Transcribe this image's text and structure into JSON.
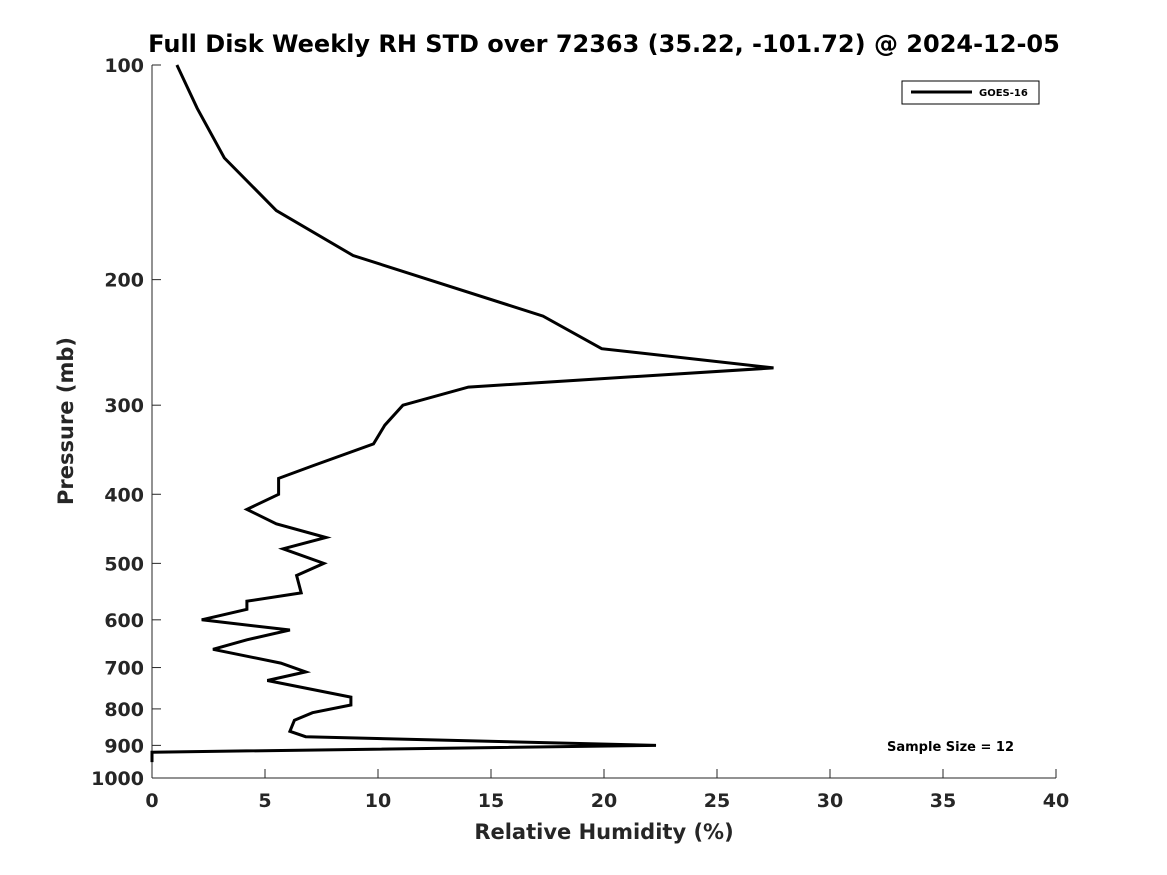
{
  "chart_data": {
    "type": "line",
    "title": "Full Disk Weekly RH STD over 72363 (35.22, -101.72) @ 2024-12-05",
    "xlabel": "Relative Humidity (%)",
    "ylabel": "Pressure (mb)",
    "xlim": [
      0,
      40
    ],
    "ylim": [
      100,
      1000
    ],
    "yscale": "log",
    "y_reversed": true,
    "x_ticks": [
      "0",
      "5",
      "10",
      "15",
      "20",
      "25",
      "30",
      "35",
      "40"
    ],
    "y_ticks": [
      "100",
      "200",
      "300",
      "400",
      "500",
      "600",
      "700",
      "800",
      "900",
      "1000"
    ],
    "grid": false,
    "legend_position": "top-right",
    "series": [
      {
        "name": "GOES-16",
        "color": "#000000",
        "points": [
          [
            1.1,
            100
          ],
          [
            2.0,
            115
          ],
          [
            3.2,
            135
          ],
          [
            5.5,
            160
          ],
          [
            8.9,
            185
          ],
          [
            17.3,
            225
          ],
          [
            19.9,
            250
          ],
          [
            27.5,
            266
          ],
          [
            14.0,
            283
          ],
          [
            11.1,
            300
          ],
          [
            10.3,
            320
          ],
          [
            9.8,
            340
          ],
          [
            7.1,
            365
          ],
          [
            5.6,
            380
          ],
          [
            5.6,
            400
          ],
          [
            4.2,
            420
          ],
          [
            5.5,
            440
          ],
          [
            7.7,
            460
          ],
          [
            5.8,
            477
          ],
          [
            7.6,
            500
          ],
          [
            6.4,
            520
          ],
          [
            6.6,
            550
          ],
          [
            4.2,
            565
          ],
          [
            4.2,
            580
          ],
          [
            2.2,
            600
          ],
          [
            6.1,
            620
          ],
          [
            4.2,
            640
          ],
          [
            2.7,
            660
          ],
          [
            5.7,
            690
          ],
          [
            6.8,
            710
          ],
          [
            5.1,
            730
          ],
          [
            8.8,
            770
          ],
          [
            8.8,
            790
          ],
          [
            7.1,
            810
          ],
          [
            6.3,
            830
          ],
          [
            6.1,
            860
          ],
          [
            6.8,
            875
          ],
          [
            22.3,
            900
          ],
          [
            0,
            920
          ],
          [
            0,
            950
          ]
        ]
      }
    ],
    "annotations": [
      "Sample Size = 12"
    ]
  }
}
